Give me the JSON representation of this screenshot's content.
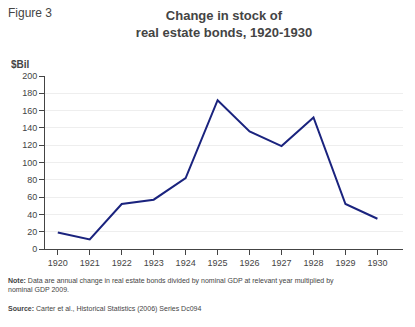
{
  "chart_data": {
    "type": "line",
    "title": "Change in stock of\nreal estate bonds, 1920-1930",
    "ylabel": "$Bil",
    "annotations": [
      "Figure 3",
      "Note: Data are annual change in real estate bonds divided by nominal GDP at relevant year multiplied by\nnominal GDP 2009.",
      "Source: Carter et al., Historical Statistics (2006) Series Dc094"
    ],
    "x": [
      1920,
      1921,
      1922,
      1923,
      1924,
      1925,
      1926,
      1927,
      1928,
      1929,
      1930
    ],
    "values": [
      19,
      11,
      52,
      57,
      82,
      172,
      136,
      119,
      152,
      52,
      35
    ],
    "color": "#1a237e",
    "xlim": [
      1919.6,
      1930.8
    ],
    "xticks": [
      1920,
      1921,
      1922,
      1923,
      1924,
      1925,
      1926,
      1927,
      1928,
      1929,
      1930
    ],
    "ylim": [
      0,
      200
    ],
    "yticks": [
      0,
      20,
      40,
      60,
      80,
      100,
      120,
      140,
      160,
      180,
      200
    ],
    "grid": "y"
  }
}
